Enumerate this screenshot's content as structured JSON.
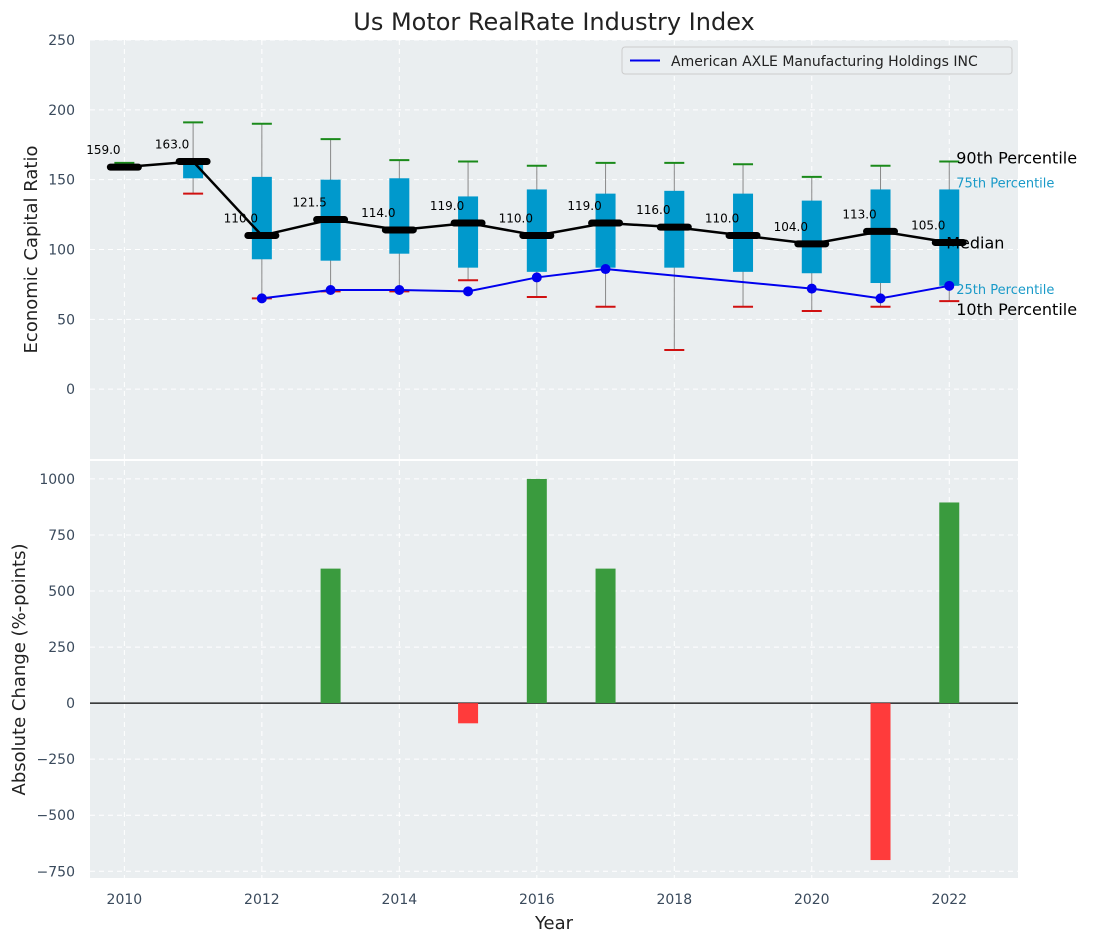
{
  "chart_data": [
    {
      "type": "box",
      "title": "Us Motor RealRate Industry Index",
      "ylabel": "Economic Capital Ratio",
      "ylim": [
        -50,
        250
      ],
      "yticks": [
        0,
        50,
        100,
        150,
        200,
        250
      ],
      "grid": true,
      "legend": {
        "position": "top-right",
        "entries": [
          "American AXLE Manufacturing Holdings INC"
        ]
      },
      "years": [
        2010,
        2011,
        2012,
        2013,
        2014,
        2015,
        2016,
        2017,
        2018,
        2019,
        2020,
        2021,
        2022
      ],
      "p90": [
        162,
        191,
        190,
        179,
        164,
        163,
        160,
        162,
        162,
        161,
        152,
        160,
        163
      ],
      "q75": [
        160,
        163,
        152,
        150,
        151,
        138,
        143,
        140,
        142,
        140,
        135,
        143,
        143
      ],
      "median": [
        159,
        163,
        110,
        121.5,
        114,
        119,
        110,
        119,
        116,
        110,
        104,
        113,
        105
      ],
      "median_labels": [
        "159.0",
        "163.0",
        "110.0",
        "121.5",
        "114.0",
        "119.0",
        "110.0",
        "119.0",
        "116.0",
        "110.0",
        "104.0",
        "113.0",
        "105.0"
      ],
      "q25": [
        158,
        151,
        93,
        92,
        97,
        87,
        84,
        87,
        87,
        84,
        83,
        76,
        74
      ],
      "p10": [
        158,
        140,
        65,
        70,
        70,
        78,
        66,
        59,
        28,
        59,
        56,
        59,
        63
      ],
      "company": {
        "name": "American AXLE Manufacturing Holdings INC",
        "years": [
          2012,
          2013,
          2014,
          2015,
          2016,
          2017,
          2020,
          2021,
          2022
        ],
        "values": [
          65,
          71,
          71,
          70,
          80,
          86,
          72,
          65,
          74
        ]
      },
      "annotations": {
        "p90": "90th Percentile",
        "p75": "75th Percentile",
        "median": "Median",
        "p25": "25th Percentile",
        "p10": "10th Percentile"
      }
    },
    {
      "type": "bar",
      "xlabel": "Year",
      "ylabel": "Absolute Change (%-points)",
      "ylim": [
        -780,
        1080
      ],
      "yticks": [
        -750,
        -500,
        -250,
        0,
        250,
        500,
        750,
        1000
      ],
      "ytick_labels": [
        "−750",
        "−500",
        "−250",
        "0",
        "250",
        "500",
        "750",
        "1000"
      ],
      "xticks": [
        2010,
        2012,
        2014,
        2016,
        2018,
        2020,
        2022
      ],
      "categories": [
        2013,
        2015,
        2016,
        2017,
        2021,
        2022
      ],
      "values": [
        600,
        -90,
        1000,
        600,
        -700,
        895
      ],
      "colors": {
        "positive": "#3a9b3e",
        "negative": "#ff3b3b"
      }
    }
  ]
}
